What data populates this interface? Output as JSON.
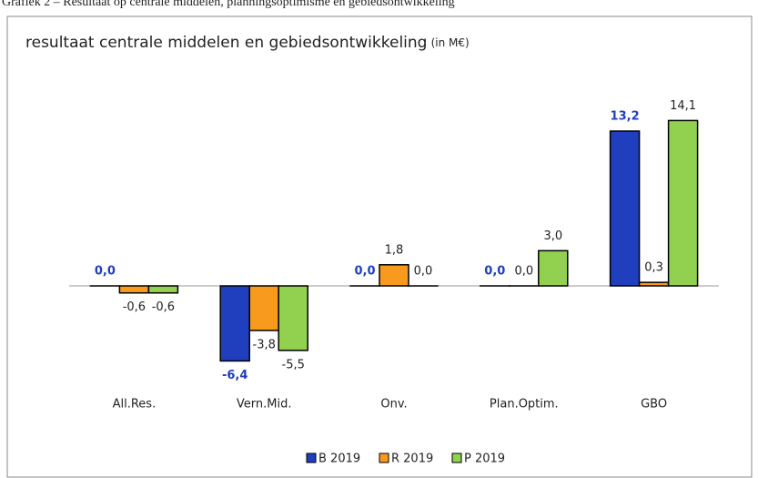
{
  "caption": "Grafiek 2 – Resultaat op centrale middelen, planningsoptimisme en gebiedsontwikkeling",
  "chart_data": {
    "type": "bar",
    "title": "resultaat centrale middelen en gebiedsontwikkeling",
    "title_unit": "(in M€)",
    "categories": [
      "All.Res.",
      "Vern.Mid.",
      "Onv.",
      "Plan.Optim.",
      "GBO"
    ],
    "series": [
      {
        "name": "B 2019",
        "color": "#1f3fbf",
        "values": [
          0,
          -6.4,
          0,
          0,
          13.2
        ],
        "value_labels": [
          "0,0",
          "-6,4",
          "0,0",
          "0,0",
          "13,2"
        ]
      },
      {
        "name": "R 2019",
        "color": "#f79a1e",
        "values": [
          -0.6,
          -3.8,
          1.8,
          0,
          0.3
        ],
        "value_labels": [
          "-0,6",
          "-3,8",
          "1,8",
          "0,0",
          "0,3"
        ]
      },
      {
        "name": "P 2019",
        "color": "#92d050",
        "values": [
          -0.6,
          -5.5,
          0,
          3.0,
          14.1
        ],
        "value_labels": [
          "-0,6",
          "-5,5",
          "0,0",
          "3,0",
          "14,1"
        ]
      }
    ]
  }
}
